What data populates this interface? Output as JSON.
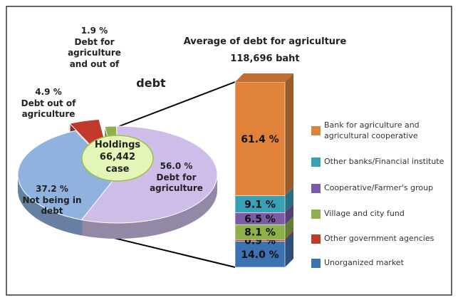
{
  "chart_data": [
    {
      "type": "pie",
      "categories": [
        "Not being in debt",
        "Debt for agriculture",
        "Debt out of agriculture",
        "Debt for agriculture and out of"
      ],
      "values": [
        37.2,
        56.0,
        4.9,
        1.9
      ],
      "value_labels": [
        "37.2 %",
        "56.0 %",
        "4.9 %",
        "1.9 %"
      ],
      "colors": [
        "#8fb2df",
        "#cdbde8",
        "#c0392b",
        "#8db04a"
      ],
      "center_label": "Holdings 66,442 case",
      "annotation": "debt"
    },
    {
      "type": "stacked_bar",
      "title": "Average of debt for agriculture",
      "subtitle": "118,696 baht",
      "series": [
        {
          "name": "Unorganized market",
          "color": "#3d72b0",
          "values": [
            14.0
          ],
          "value_labels": [
            "14.0 %"
          ]
        },
        {
          "name": "Other government agencies",
          "color": "#c0392b",
          "values": [
            0.9
          ],
          "value_labels": [
            "0.9 %"
          ]
        },
        {
          "name": "Village and city fund",
          "color": "#8db04a",
          "values": [
            8.1
          ],
          "value_labels": [
            "8.1 %"
          ]
        },
        {
          "name": "Cooperative/Farmer's group",
          "color": "#7b5aa6",
          "values": [
            6.5
          ],
          "value_labels": [
            "6.5 %"
          ]
        },
        {
          "name": "Other banks/Financial institute",
          "color": "#3aa0b5",
          "values": [
            9.1
          ],
          "value_labels": [
            "9.1 %"
          ]
        },
        {
          "name": "Bank for agriculture and agricultural cooperative",
          "color": "#e0823a",
          "values": [
            61.4
          ],
          "value_labels": [
            "61.4 %"
          ]
        }
      ]
    }
  ]
}
